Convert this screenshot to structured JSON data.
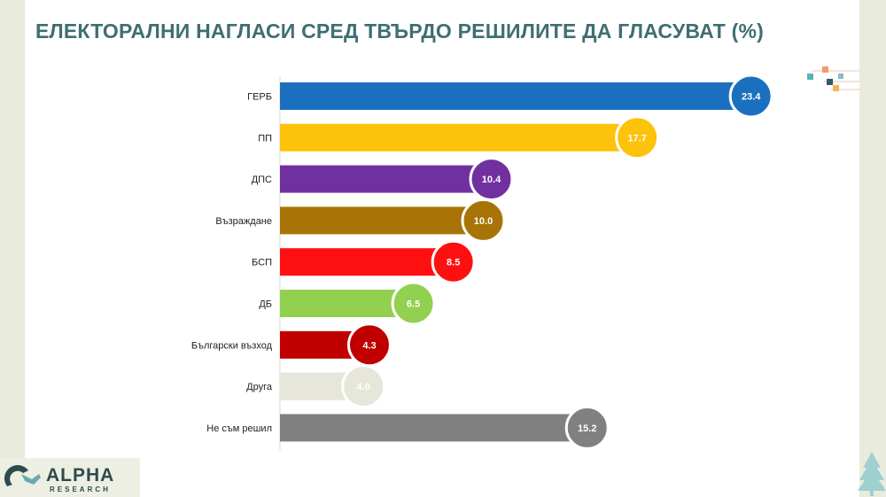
{
  "title": "ЕЛЕКТОРАЛНИ НАГЛАСИ СРЕД ТВЪРДО РЕШИЛИТЕ ДА ГЛАСУВАТ (%)",
  "logo": {
    "name": "ALPHA",
    "sub": "RESEARCH"
  },
  "chart_data": {
    "type": "bar",
    "orientation": "horizontal",
    "title": "ЕЛЕКТОРАЛНИ НАГЛАСИ СРЕД ТВЪРДО РЕШИЛИТЕ ДА ГЛАСУВАТ (%)",
    "categories": [
      "ГЕРБ",
      "ПП",
      "ДПС",
      "Възраждане",
      "БСП",
      "ДБ",
      "Български възход",
      "Друга",
      "Не съм решил"
    ],
    "values": [
      23.4,
      17.7,
      10.4,
      10.0,
      8.5,
      6.5,
      4.3,
      4.0,
      15.2
    ],
    "value_labels": [
      "23.4",
      "17.7",
      "10.4",
      "10.0",
      "8.5",
      "6.5",
      "4.3",
      "4.0",
      "15.2"
    ],
    "colors": [
      "#1a70bf",
      "#fdc20a",
      "#7130a0",
      "#a87408",
      "#ff1010",
      "#92d050",
      "#c00000",
      "#e7e6da",
      "#808080"
    ],
    "xlim": [
      0,
      25
    ],
    "grid": false,
    "legend": "none"
  }
}
